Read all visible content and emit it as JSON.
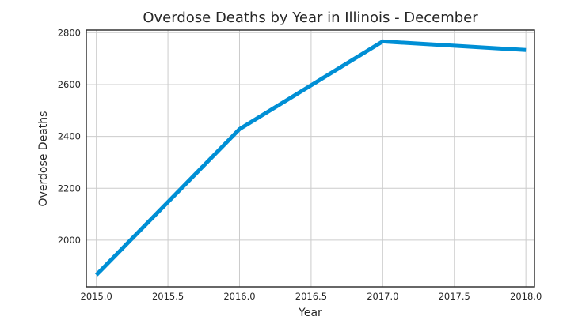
{
  "chart_data": {
    "type": "line",
    "title": "Overdose Deaths by Year in Illinois - December",
    "xlabel": "Year",
    "ylabel": "Overdose Deaths",
    "xlim": [
      2014.93,
      2018.06
    ],
    "ylim": [
      1820,
      2810
    ],
    "xticks": [
      2015.0,
      2015.5,
      2016.0,
      2016.5,
      2017.0,
      2017.5,
      2018.0
    ],
    "xtick_labels": [
      "2015.0",
      "2015.5",
      "2016.0",
      "2016.5",
      "2017.0",
      "2017.5",
      "2018.0"
    ],
    "yticks": [
      2000,
      2200,
      2400,
      2600,
      2800
    ],
    "ytick_labels": [
      "2000",
      "2200",
      "2400",
      "2600",
      "2800"
    ],
    "grid": true,
    "x": [
      2015,
      2016,
      2017,
      2018
    ],
    "series": [
      {
        "values": [
          1866,
          2428,
          2766,
          2733
        ],
        "color": "#008fd5"
      }
    ]
  }
}
